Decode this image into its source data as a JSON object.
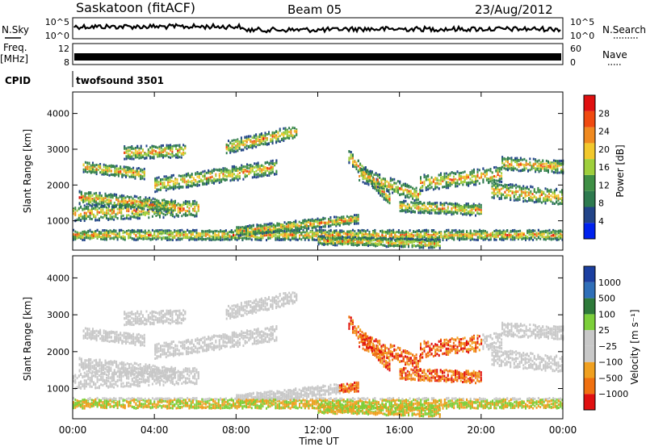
{
  "header": {
    "station": "Saskatoon (fitACF)",
    "beam": "Beam 05",
    "date": "23/Aug/2012"
  },
  "left_labels": {
    "nsky": "N.Sky",
    "freq": "Freq.",
    "freq_unit": "[MHz]",
    "cpid": "CPID"
  },
  "right_labels": {
    "nsearch": "N.Search",
    "nave": "Nave"
  },
  "cpid_name": "twofsound 3501",
  "colors": {
    "power": [
      "#0022ee",
      "#224488",
      "#2e7a4f",
      "#3f8f45",
      "#9ecf3c",
      "#f2c82c",
      "#f08a20",
      "#f04a10",
      "#e01010"
    ],
    "velocity": [
      "#1b3fa0",
      "#2f6fb8",
      "#2e7a3a",
      "#7ccf3a",
      "#c8c8c8",
      "#c8c8c8",
      "#f0a020",
      "#f07010",
      "#e01010"
    ]
  },
  "chart_data": [
    {
      "type": "line",
      "name": "noise_panel",
      "left_ticks": [
        "10^5",
        "10^0"
      ],
      "right_ticks": [
        "10^5",
        "10^0"
      ]
    },
    {
      "type": "line",
      "name": "frequency_panel",
      "left_ticks": [
        "12",
        "8"
      ],
      "right_ticks": [
        "60",
        "0"
      ],
      "freq_mhz": 10.5
    },
    {
      "type": "heatmap",
      "name": "power",
      "ylabel": "Slant Range [km]",
      "yticks": [
        "1000",
        "2000",
        "3000",
        "4000"
      ],
      "ylim": [
        180,
        4600
      ],
      "colorbar": {
        "label": "Power [dB]",
        "ticks": [
          "4",
          "8",
          "12",
          "16",
          "20",
          "24",
          "28"
        ]
      }
    },
    {
      "type": "heatmap",
      "name": "velocity",
      "ylabel": "Slant Range [km]",
      "yticks": [
        "1000",
        "2000",
        "3000",
        "4000"
      ],
      "ylim": [
        180,
        4600
      ],
      "colorbar": {
        "label": "Velocity [m s⁻¹]",
        "ticks": [
          "1000",
          "500",
          "100",
          "25",
          "−25",
          "−100",
          "−500",
          "−1000"
        ]
      }
    }
  ],
  "time_axis": {
    "label": "Time UT",
    "ticks": [
      "00:00",
      "04:00",
      "08:00",
      "12:00",
      "16:00",
      "20:00",
      "00:00"
    ]
  }
}
